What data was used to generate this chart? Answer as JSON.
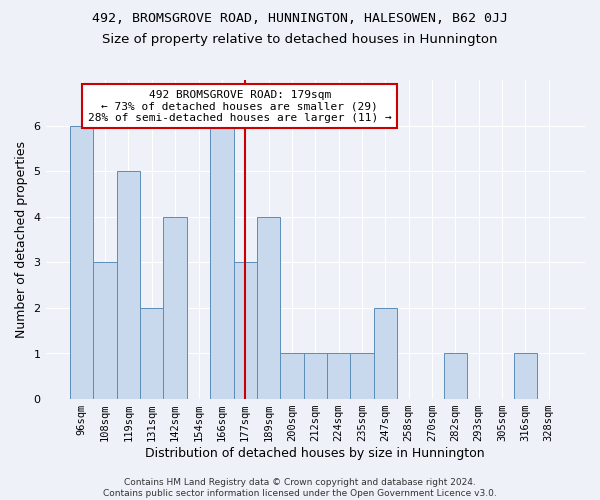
{
  "title1": "492, BROMSGROVE ROAD, HUNNINGTON, HALESOWEN, B62 0JJ",
  "title2": "Size of property relative to detached houses in Hunnington",
  "xlabel": "Distribution of detached houses by size in Hunnington",
  "ylabel": "Number of detached properties",
  "categories": [
    "96sqm",
    "108sqm",
    "119sqm",
    "131sqm",
    "142sqm",
    "154sqm",
    "166sqm",
    "177sqm",
    "189sqm",
    "200sqm",
    "212sqm",
    "224sqm",
    "235sqm",
    "247sqm",
    "258sqm",
    "270sqm",
    "282sqm",
    "293sqm",
    "305sqm",
    "316sqm",
    "328sqm"
  ],
  "values": [
    6,
    3,
    5,
    2,
    4,
    0,
    6,
    3,
    4,
    1,
    1,
    1,
    1,
    2,
    0,
    0,
    1,
    0,
    0,
    1,
    0
  ],
  "bar_color": "#c8d9ee",
  "bar_edge_color": "#5b8db8",
  "highlight_index": 7,
  "highlight_line_color": "#cc0000",
  "annotation_text": "492 BROMSGROVE ROAD: 179sqm\n← 73% of detached houses are smaller (29)\n28% of semi-detached houses are larger (11) →",
  "annotation_box_edge": "#cc0000",
  "ylim": [
    0,
    7
  ],
  "yticks": [
    0,
    1,
    2,
    3,
    4,
    5,
    6
  ],
  "background_color": "#eef2f8",
  "grid_color": "#ffffff",
  "footnote": "Contains HM Land Registry data © Crown copyright and database right 2024.\nContains public sector information licensed under the Open Government Licence v3.0.",
  "title1_fontsize": 9.5,
  "title2_fontsize": 9.5,
  "xlabel_fontsize": 9,
  "ylabel_fontsize": 9,
  "tick_fontsize": 7.5,
  "annot_fontsize": 8
}
